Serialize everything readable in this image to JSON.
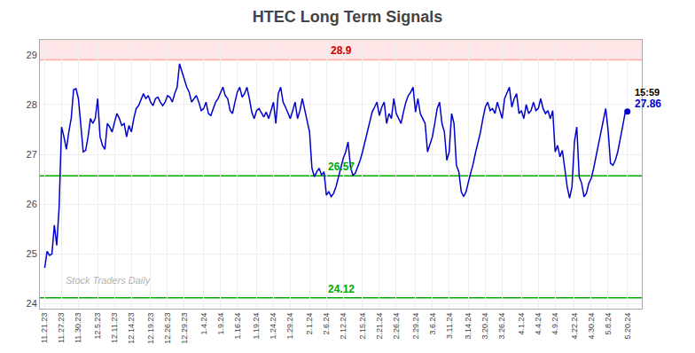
{
  "chart_data": {
    "type": "line",
    "title": "HTEC Long Term Signals",
    "categories": [
      "11.21.23",
      null,
      null,
      null,
      null,
      null,
      null,
      "11.27.23",
      null,
      null,
      null,
      null,
      null,
      null,
      "11.30.23",
      null,
      null,
      null,
      null,
      null,
      null,
      null,
      "12.5.23",
      null,
      null,
      null,
      null,
      null,
      null,
      "12.11.23",
      null,
      null,
      null,
      null,
      null,
      null,
      "12.14.23",
      null,
      null,
      null,
      null,
      null,
      null,
      null,
      "12.19.23",
      null,
      null,
      null,
      null,
      null,
      null,
      "12.26.23",
      null,
      null,
      null,
      null,
      null,
      null,
      "12.29.23",
      null,
      null,
      null,
      null,
      null,
      null,
      null,
      "1.4.24",
      null,
      null,
      null,
      null,
      null,
      null,
      "1.9.24",
      null,
      null,
      null,
      null,
      null,
      null,
      "1.16.24",
      null,
      null,
      null,
      null,
      null,
      null,
      null,
      "1.19.24",
      null,
      null,
      null,
      null,
      null,
      null,
      "1.24.24",
      null,
      null,
      null,
      null,
      null,
      null,
      "1.29.24",
      null,
      null,
      null,
      null,
      null,
      null,
      null,
      "2.1.24",
      null,
      null,
      null,
      null,
      null,
      null,
      "2.6.24",
      null,
      null,
      null,
      null,
      null,
      null,
      "2.12.24",
      null,
      null,
      null,
      null,
      null,
      null,
      null,
      "2.15.24",
      null,
      null,
      null,
      null,
      null,
      null,
      "2.21.24",
      null,
      null,
      null,
      null,
      null,
      null,
      "2.26.24",
      null,
      null,
      null,
      null,
      null,
      null,
      null,
      "2.29.24",
      null,
      null,
      null,
      null,
      null,
      null,
      "3.6.24",
      null,
      null,
      null,
      null,
      null,
      null,
      "3.11.24",
      null,
      null,
      null,
      null,
      null,
      null,
      null,
      "3.14.24",
      null,
      null,
      null,
      null,
      null,
      null,
      "3.20.24",
      null,
      null,
      null,
      null,
      null,
      null,
      "3.26.24",
      null,
      null,
      null,
      null,
      null,
      null,
      null,
      "4.1.24",
      null,
      null,
      null,
      null,
      null,
      null,
      "4.4.24",
      null,
      null,
      null,
      null,
      null,
      null,
      "4.9.24",
      null,
      null,
      null,
      null,
      null,
      null,
      null,
      "4.22.24",
      null,
      null,
      null,
      null,
      null,
      null,
      "4.30.24",
      null,
      null,
      null,
      null,
      null,
      null,
      "5.8.24",
      null,
      null,
      null,
      null,
      null,
      null,
      null,
      "5.20.24"
    ],
    "values": [
      24.72,
      25.05,
      24.97,
      25.0,
      25.58,
      25.17,
      25.95,
      27.55,
      27.35,
      27.1,
      27.45,
      27.72,
      28.3,
      28.32,
      28.12,
      27.58,
      27.05,
      27.08,
      27.35,
      27.72,
      27.62,
      27.72,
      28.12,
      27.35,
      27.18,
      27.1,
      27.62,
      27.55,
      27.45,
      27.65,
      27.82,
      27.72,
      27.58,
      27.62,
      27.35,
      27.58,
      27.45,
      27.72,
      27.92,
      27.98,
      28.1,
      28.22,
      28.12,
      28.18,
      28.05,
      27.98,
      28.12,
      28.15,
      28.05,
      27.98,
      28.05,
      28.18,
      28.15,
      28.05,
      28.22,
      28.35,
      28.82,
      28.65,
      28.48,
      28.35,
      28.25,
      28.05,
      28.12,
      28.18,
      28.05,
      27.88,
      27.92,
      28.05,
      27.82,
      27.78,
      27.92,
      28.05,
      28.12,
      28.22,
      28.35,
      28.18,
      28.12,
      27.88,
      27.82,
      28.05,
      28.25,
      28.35,
      28.15,
      28.22,
      28.35,
      28.12,
      27.85,
      27.72,
      27.88,
      27.92,
      27.82,
      27.75,
      27.85,
      27.72,
      27.88,
      28.05,
      27.62,
      28.22,
      28.35,
      28.05,
      27.95,
      27.85,
      27.72,
      27.88,
      28.05,
      27.72,
      27.88,
      28.12,
      27.88,
      27.65,
      27.45,
      26.72,
      26.55,
      26.65,
      26.72,
      26.58,
      26.65,
      26.18,
      26.25,
      26.15,
      26.22,
      26.35,
      26.55,
      26.72,
      26.92,
      27.05,
      27.25,
      26.75,
      26.58,
      26.62,
      26.75,
      26.88,
      27.05,
      27.25,
      27.45,
      27.65,
      27.85,
      27.95,
      28.05,
      27.78,
      27.95,
      28.05,
      27.62,
      27.82,
      27.72,
      28.12,
      27.82,
      27.72,
      27.62,
      27.85,
      28.05,
      28.18,
      28.25,
      28.35,
      27.85,
      28.12,
      27.82,
      27.72,
      27.62,
      27.05,
      27.22,
      27.35,
      27.62,
      27.92,
      28.05,
      27.62,
      27.45,
      26.88,
      27.05,
      27.82,
      27.62,
      26.78,
      26.65,
      26.25,
      26.15,
      26.25,
      26.45,
      26.62,
      26.82,
      27.05,
      27.25,
      27.45,
      27.72,
      27.95,
      28.05,
      27.88,
      27.92,
      27.82,
      28.05,
      27.88,
      27.72,
      28.12,
      28.25,
      28.35,
      27.95,
      28.12,
      28.22,
      27.82,
      27.88,
      27.72,
      28.0,
      27.82,
      27.88,
      28.05,
      27.88,
      27.92,
      28.12,
      27.92,
      27.82,
      27.88,
      27.72,
      27.88,
      27.05,
      27.18,
      26.95,
      27.08,
      26.72,
      26.35,
      26.12,
      26.35,
      27.25,
      27.55,
      26.55,
      26.42,
      26.15,
      26.22,
      26.42,
      26.52,
      26.72,
      26.95,
      27.18,
      27.42,
      27.65,
      27.92,
      27.48,
      26.82,
      26.78,
      26.88,
      27.05,
      27.28,
      27.55,
      27.82,
      27.86
    ],
    "color": "#0000cc",
    "reference_lines": [
      {
        "y": 28.9,
        "color": "#ffaaaa",
        "label": "28.9",
        "label_color": "#cc0000",
        "shade_above": "#ffcccc"
      },
      {
        "y": 26.57,
        "color": "#00aa00",
        "label": "26.57",
        "label_color": "#00aa00"
      },
      {
        "y": 24.12,
        "color": "#00aa00",
        "label": "24.12",
        "label_color": "#00aa00"
      }
    ],
    "last_point": {
      "time_label": "15:59",
      "price_label": "27.86",
      "color": "#0000cc"
    },
    "watermark": "Stock Traders Daily",
    "xlim": [
      -2,
      248
    ],
    "ylim": [
      23.9,
      29.3
    ],
    "yticks": [
      24,
      25,
      26,
      27,
      28,
      29
    ],
    "grid": true
  }
}
